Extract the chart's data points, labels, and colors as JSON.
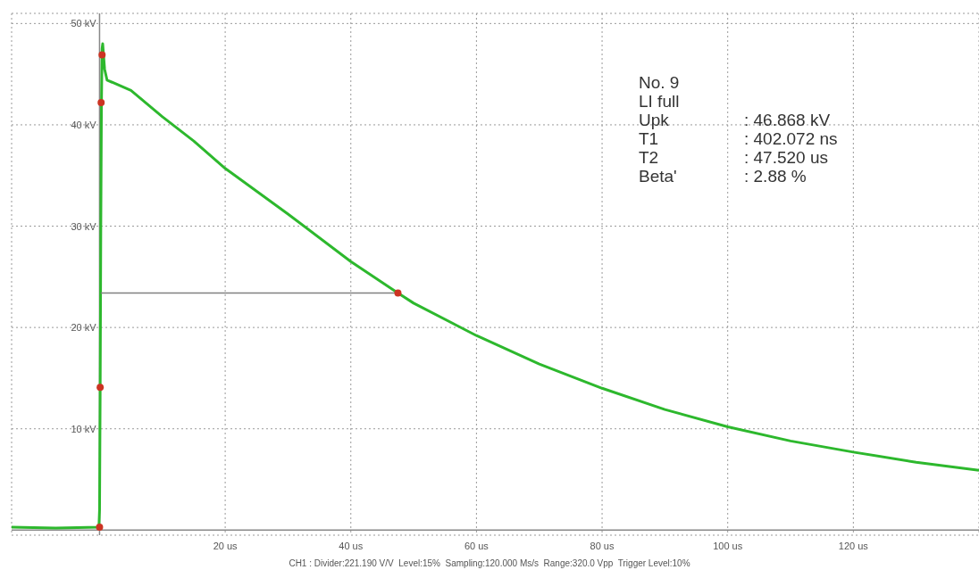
{
  "chart_data": {
    "type": "line",
    "annotations": [
      "No. 9",
      "LI full",
      "Upk : 46.868 kV",
      "T1 : 402.072 ns",
      "T2 : 47.520 us",
      "Beta' : 2.88 %",
      "CH1 : Divider:221.190 V/V  Level:15%  Sampling:120.000 Ms/s  Range:320.0 Vpp  Trigger Level:10%"
    ],
    "series": [
      {
        "color": "#2db82d",
        "marker": "none",
        "x": [
          -14,
          -7,
          -0.1,
          0,
          0.1,
          0.2,
          0.3,
          0.4,
          0.5,
          0.8,
          1.2,
          2,
          5,
          10,
          15,
          20,
          30,
          40,
          47.5,
          50,
          60,
          70,
          80,
          90,
          100,
          110,
          120,
          130,
          140
        ],
        "values": [
          0.3,
          0.2,
          0.3,
          2,
          14,
          30,
          42,
          47.5,
          48,
          45.5,
          44.4,
          44.2,
          43.4,
          40.8,
          38.4,
          35.7,
          31.2,
          26.5,
          23.4,
          22.4,
          19.2,
          16.4,
          14.0,
          11.9,
          10.2,
          8.8,
          7.7,
          6.7,
          5.9
        ]
      },
      {
        "type": "line",
        "marker": "none",
        "color": "#808080",
        "x": [
          0.2,
          47.5
        ],
        "values": [
          23.4,
          23.4
        ]
      },
      {
        "type": "scatter",
        "marker": "circle",
        "color": "#cc3322",
        "x": [
          0,
          0.1,
          0.25,
          0.4,
          47.5
        ],
        "values": [
          0.3,
          14.1,
          42.2,
          46.9,
          23.4
        ]
      }
    ],
    "xlim": [
      -14,
      140
    ],
    "xticks": [
      {
        "value": 20,
        "label": "20 us"
      },
      {
        "value": 40,
        "label": "40 us"
      },
      {
        "value": 60,
        "label": "60 us"
      },
      {
        "value": 80,
        "label": "80 us"
      },
      {
        "value": 100,
        "label": "100 us"
      },
      {
        "value": 120,
        "label": "120 us"
      }
    ],
    "ylim": [
      -0.5,
      51
    ],
    "yticks": [
      {
        "value": 10,
        "label": "10 kV"
      },
      {
        "value": 20,
        "label": "20 kV"
      },
      {
        "value": 30,
        "label": "30 kV"
      },
      {
        "value": 40,
        "label": "40 kV"
      },
      {
        "value": 50,
        "label": "50 kV"
      }
    ],
    "grid": true
  }
}
